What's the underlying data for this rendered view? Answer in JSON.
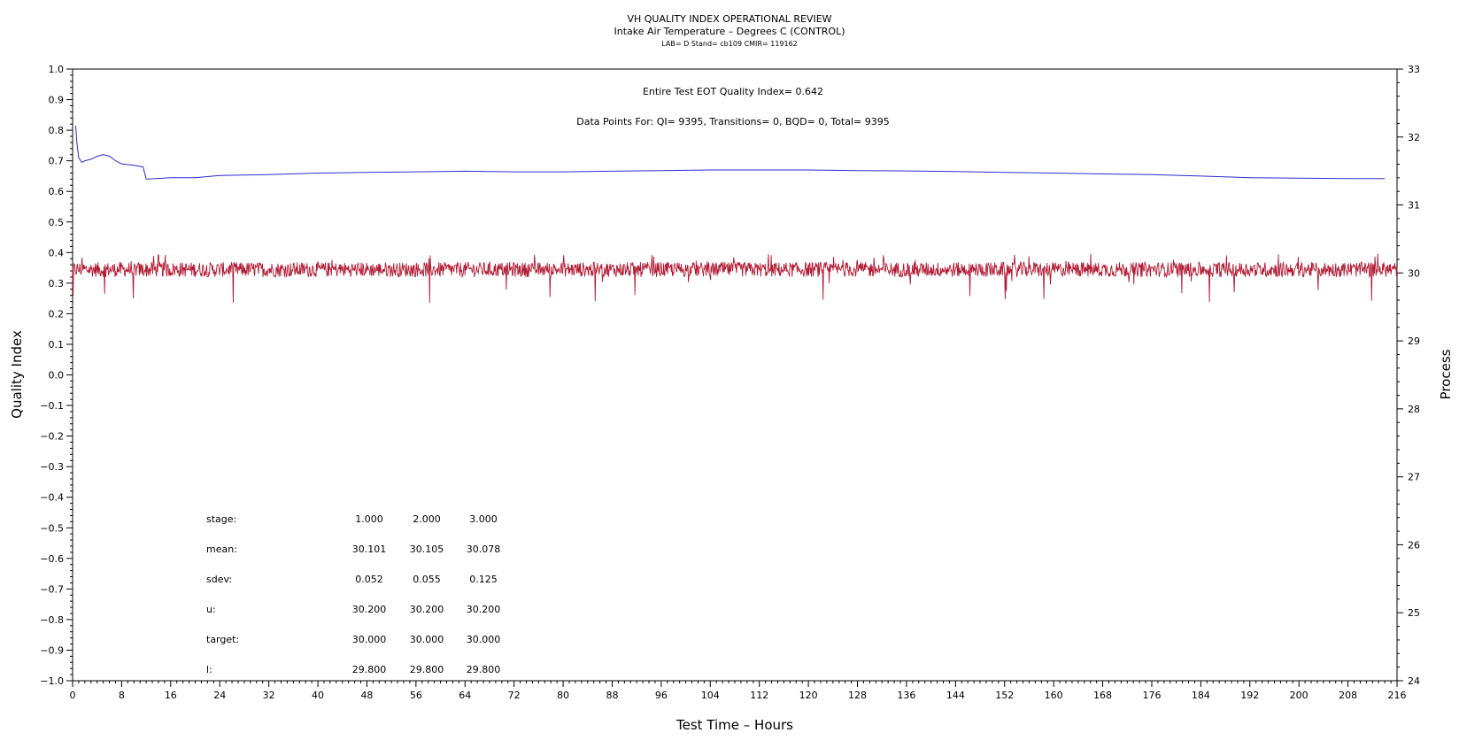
{
  "chart_data": {
    "type": "line",
    "title": "VH QUALITY INDEX OPERATIONAL REVIEW",
    "subtitle": "Intake Air Temperature – Degrees C (CONTROL)",
    "subtitle2": "LAB= D Stand= cb109 CMIR= 119162",
    "xlabel": "Test Time – Hours",
    "ylabel_left": "Quality Index",
    "ylabel_right": "Process",
    "xlim": [
      0,
      216
    ],
    "ylim_left": [
      -1.0,
      1.0
    ],
    "ylim_right": [
      24,
      33
    ],
    "x_ticks": [
      "0",
      "8",
      "16",
      "24",
      "32",
      "40",
      "48",
      "56",
      "64",
      "72",
      "80",
      "88",
      "96",
      "104",
      "112",
      "120",
      "128",
      "136",
      "144",
      "152",
      "160",
      "168",
      "176",
      "184",
      "192",
      "200",
      "208",
      "216"
    ],
    "y_left_ticks": [
      "1.0",
      "0.9",
      "0.8",
      "0.7",
      "0.6",
      "0.5",
      "0.4",
      "0.3",
      "0.2",
      "0.1",
      "0.0",
      "−0.1",
      "−0.2",
      "−0.3",
      "−0.4",
      "−0.5",
      "−0.6",
      "−0.7",
      "−0.8",
      "−0.9",
      "−1.0"
    ],
    "y_right_ticks": [
      "33",
      "32",
      "31",
      "30",
      "29",
      "28",
      "27",
      "26",
      "25",
      "24"
    ],
    "annotations": [
      "Entire Test EOT Quality Index=   0.642",
      "Data Points For: QI=  9395, Transitions=     0, BQD=     0, Total=  9395"
    ],
    "series": [
      {
        "axis": "left",
        "color": "#2b2bd0",
        "x": [
          0.5,
          0.7,
          1.0,
          1.5,
          2.0,
          3.0,
          4.0,
          5.0,
          6.0,
          7.0,
          7.5,
          8.0,
          10.0,
          11.5,
          12.0,
          16.0,
          20.0,
          24.0,
          32.0,
          40.0,
          48.0,
          56.0,
          64.0,
          72.0,
          80.0,
          88.0,
          96.0,
          104.0,
          112.0,
          120.0,
          128.0,
          136.0,
          144.0,
          152.0,
          160.0,
          168.0,
          176.0,
          184.0,
          192.0,
          200.0,
          208.0,
          214.0
        ],
        "y": [
          0.815,
          0.76,
          0.71,
          0.695,
          0.7,
          0.705,
          0.715,
          0.72,
          0.715,
          0.7,
          0.695,
          0.69,
          0.685,
          0.68,
          0.64,
          0.645,
          0.645,
          0.652,
          0.655,
          0.66,
          0.662,
          0.664,
          0.666,
          0.664,
          0.664,
          0.666,
          0.668,
          0.67,
          0.67,
          0.67,
          0.668,
          0.667,
          0.665,
          0.662,
          0.66,
          0.657,
          0.655,
          0.65,
          0.645,
          0.643,
          0.642,
          0.642
        ]
      },
      {
        "axis": "right",
        "color": "#b31b34",
        "base": 30.05,
        "range": [
          29.5,
          30.4
        ],
        "x": [
          0,
          216
        ]
      }
    ],
    "stats_table": {
      "rows": [
        {
          "label": "stage:",
          "values": [
            "1.000",
            "2.000",
            "3.000"
          ]
        },
        {
          "label": "mean:",
          "values": [
            "30.101",
            "30.105",
            "30.078"
          ]
        },
        {
          "label": "sdev:",
          "values": [
            "0.052",
            "0.055",
            "0.125"
          ]
        },
        {
          "label": "u:",
          "values": [
            "30.200",
            "30.200",
            "30.200"
          ]
        },
        {
          "label": "target:",
          "values": [
            "30.000",
            "30.000",
            "30.000"
          ]
        },
        {
          "label": "l:",
          "values": [
            "29.800",
            "29.800",
            "29.800"
          ]
        }
      ]
    },
    "grid": false,
    "legend": "none"
  }
}
